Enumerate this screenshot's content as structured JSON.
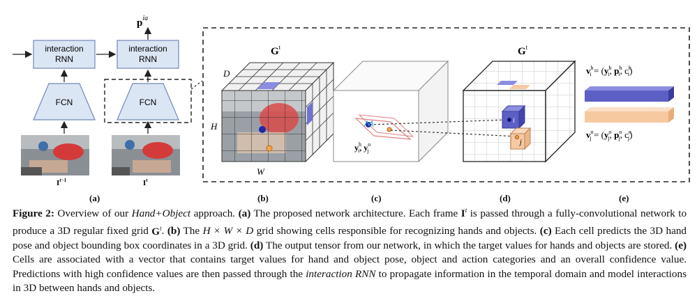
{
  "figure": {
    "panel_a": {
      "rnn_label_line1": "interaction",
      "rnn_label_line2": "RNN",
      "fcn_label": "FCN",
      "frame_prev_label": "I",
      "frame_prev_sup": "t−1",
      "frame_curr_label": "I",
      "frame_curr_sup": "t",
      "output_label": "p",
      "output_sup": "ia"
    },
    "panel_b": {
      "grid_label": "G",
      "grid_sup": "t",
      "axis_d": "D",
      "axis_h": "H",
      "axis_w": "W"
    },
    "panel_c": {
      "targets_label": "y",
      "targets_sup_h": "h",
      "targets_sub_i": "i",
      "targets_sep": ", ",
      "targets_sup_o": "o",
      "targets_sub_j": "j"
    },
    "panel_d": {
      "grid_label": "G",
      "grid_sup": "t",
      "cell_i": "i",
      "cell_j": "j"
    },
    "panel_e": {
      "hand_vector_eq": "v",
      "hand_eq_rhs": "= (y",
      "object_vector_eq": "v"
    },
    "sublabels": [
      "(a)",
      "(b)",
      "(c)",
      "(d)",
      "(e)"
    ],
    "colors": {
      "box_fill": "#dbe6f4",
      "box_stroke": "#6f89b3",
      "hand_bar": "#5c5fc4",
      "object_bar": "#f7c9a0",
      "dashed_border": "#222222"
    }
  },
  "caption": {
    "figure_label": "Figure 2:",
    "intro": "Overview of our",
    "method_name": "Hand+Object",
    "approach": "approach.",
    "a_label": "(a)",
    "a_text": "The proposed network architecture. Each frame",
    "a_frame": "I",
    "a_frame_sup": "t",
    "a_text2": "is passed through a fully-convolutional network to produce a 3D regular fixed grid",
    "a_grid": "G",
    "a_grid_sup": "t",
    "b_label": "(b)",
    "b_text": "The",
    "b_dims": "H × W × D",
    "b_text2": "grid showing cells responsible for recognizing hands and objects.",
    "c_label": "(c)",
    "c_text": "Each cell predicts the 3D hand pose and object bounding box coordinates in a 3D grid.",
    "d_label": "(d)",
    "d_text": "The output tensor from our network, in which the target values for hands and objects are stored.",
    "e_label": "(e)",
    "e_text": "Cells are associated with a vector that contains target values for hand and object pose, object and action categories and an overall confidence value. Predictions with high confidence values are then passed through the",
    "rnn_name": "interaction RNN",
    "e_text2": "to propagate information in the temporal domain and model interactions in 3D between hands and objects."
  }
}
